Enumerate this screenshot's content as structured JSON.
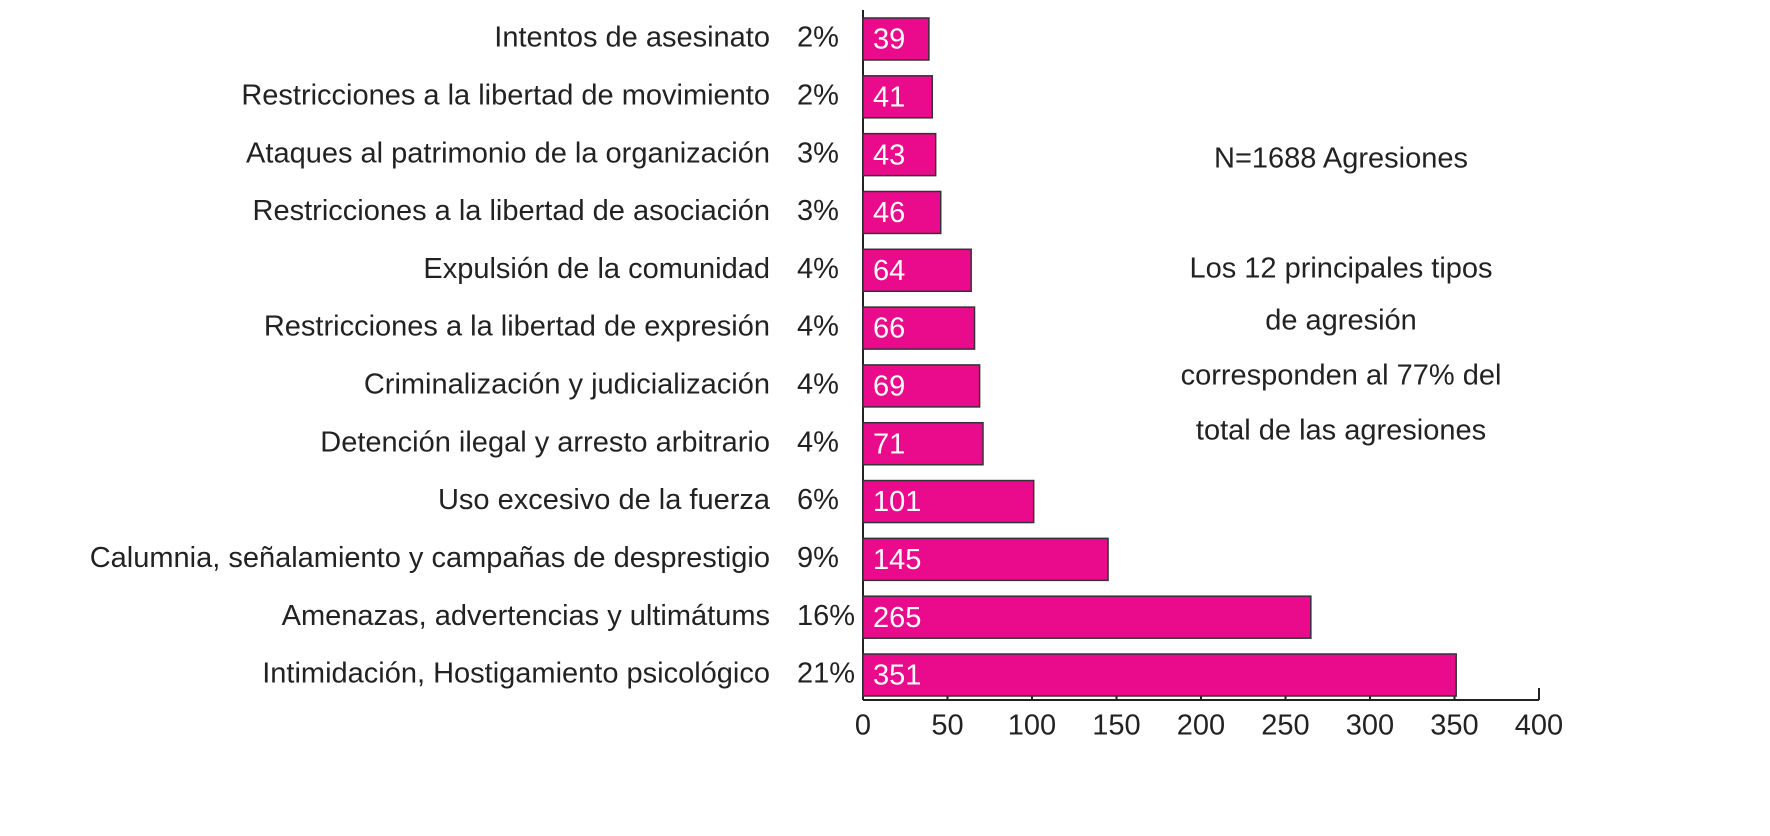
{
  "chart_data": {
    "type": "hbar",
    "categories": [
      "Intentos de asesinato",
      "Restricciones a la libertad de movimiento",
      "Ataques al patrimonio de la organización",
      "Restricciones a la libertad de asociación",
      "Expulsión de la comunidad",
      "Restricciones a la libertad de expresión",
      "Criminalización y judicialización",
      "Detención ilegal y arresto arbitrario",
      "Uso excesivo de la fuerza",
      "Calumnia, señalamiento y campañas de desprestigio",
      "Amenazas, advertencias y ultimátums",
      "Intimidación, Hostigamiento psicológico"
    ],
    "values": [
      39,
      41,
      43,
      46,
      64,
      66,
      69,
      71,
      101,
      145,
      265,
      351
    ],
    "percent_labels": [
      "2%",
      "2%",
      "3%",
      "3%",
      "4%",
      "4%",
      "4%",
      "4%",
      "6%",
      "9%",
      "16%",
      "21%"
    ],
    "color": "#ea0a8c",
    "xlim": [
      0,
      400
    ],
    "xticks": [
      0,
      50,
      100,
      150,
      200,
      250,
      300,
      350,
      400
    ],
    "annotations": [
      "N=1688 Agresiones",
      "Los 12 principales tipos",
      "de agresión",
      "corresponden al 77% del",
      "total de las agresiones"
    ]
  }
}
